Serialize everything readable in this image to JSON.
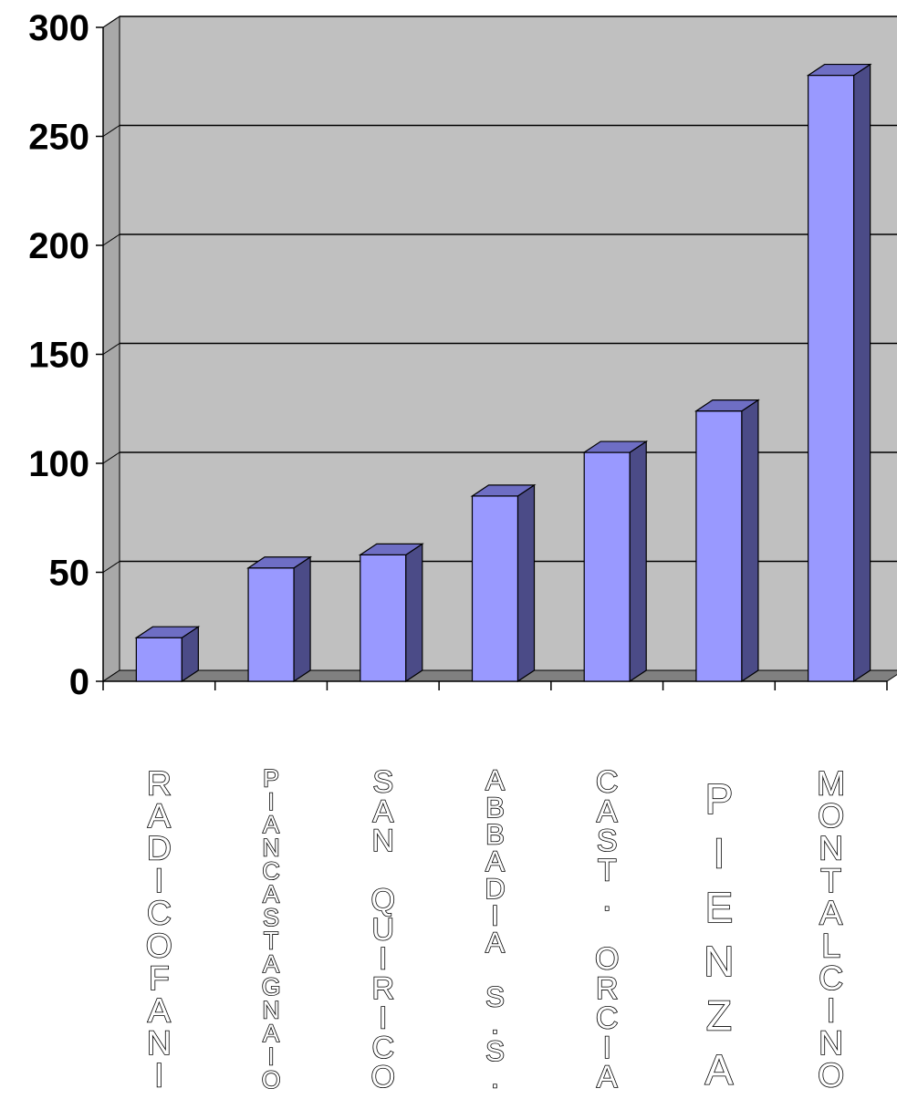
{
  "chart_data": {
    "type": "bar",
    "style": "3d-column",
    "categories": [
      "RADICOFANI",
      "PIANCASTAGNAIO",
      "SAN QUIRICO",
      "ABBADIA S.S.",
      "CAST. ORCIA",
      "PIENZA",
      "MONTALCINO"
    ],
    "values": [
      20,
      52,
      58,
      85,
      105,
      124,
      278
    ],
    "title": "",
    "xlabel": "",
    "ylabel": "",
    "ylim": [
      0,
      300
    ],
    "yticks": [
      "0",
      "50",
      "100",
      "150",
      "200",
      "250",
      "300"
    ],
    "grid": true,
    "legend": "none",
    "colors": {
      "bar_front": "#9999FF",
      "bar_side": "#4B4B87",
      "bar_top": "#6E6EC4",
      "wall": "#C0C0C0",
      "floor": "#808080",
      "gridline": "#000000"
    }
  }
}
